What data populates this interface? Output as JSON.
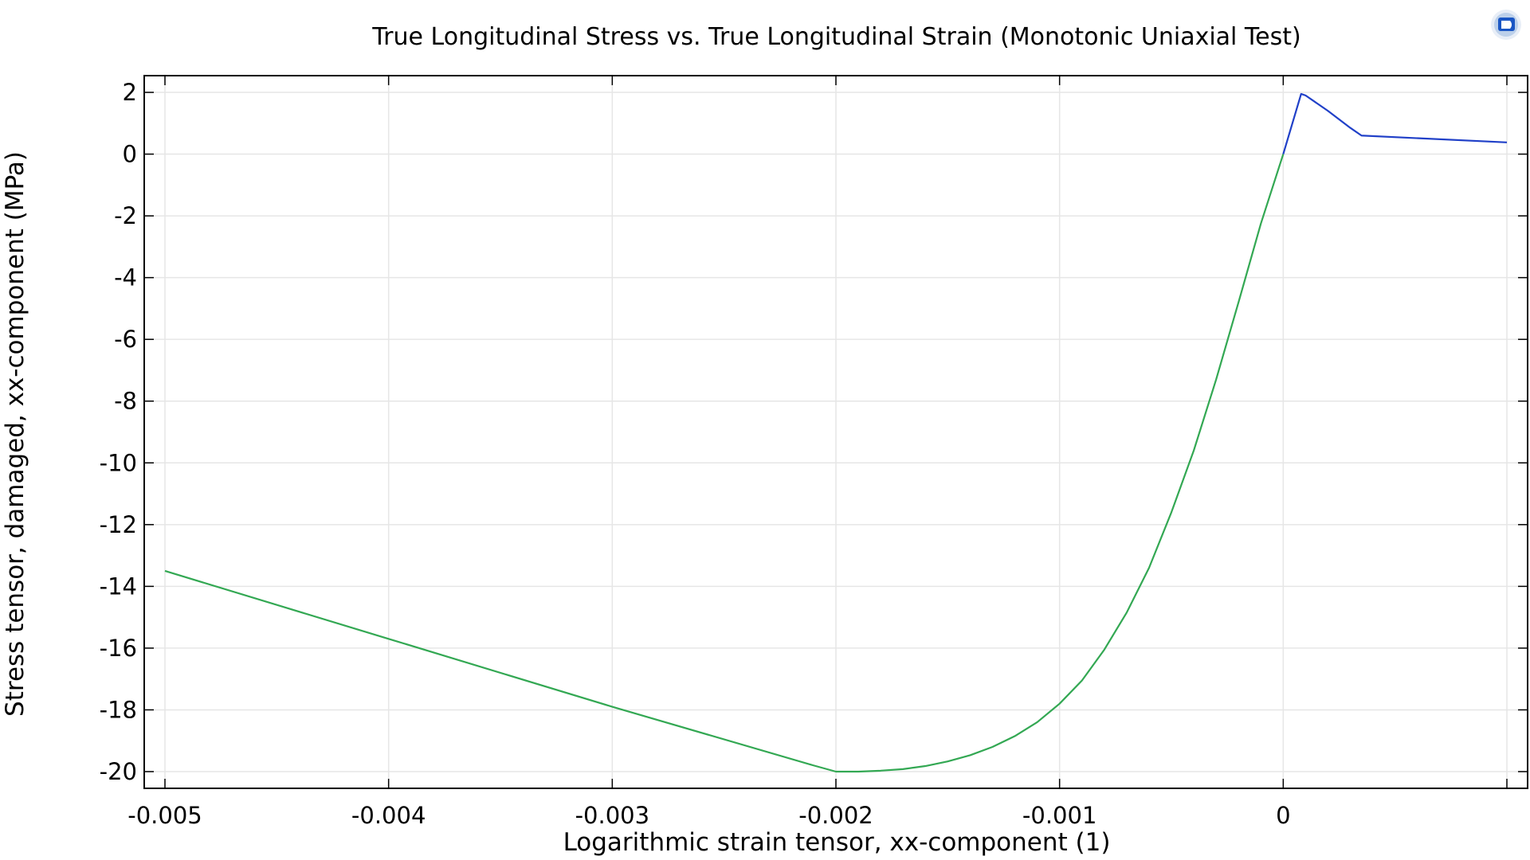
{
  "chart_data": {
    "type": "line",
    "title": "True Longitudinal Stress vs. True Longitudinal Strain (Monotonic Uniaxial Test)",
    "xlabel": "Logarithmic strain tensor, xx-component (1)",
    "ylabel": "Stress tensor, damaged, xx-component (MPa)",
    "xlim": [
      -0.005,
      0.001
    ],
    "ylim": [
      -20.5,
      2.5
    ],
    "xticks": [
      -0.005,
      -0.004,
      -0.003,
      -0.002,
      -0.001,
      0
    ],
    "xtick_labels": [
      "-0.005",
      "-0.004",
      "-0.003",
      "-0.002",
      "-0.001",
      "0"
    ],
    "yticks": [
      2,
      0,
      -2,
      -4,
      -6,
      -8,
      -10,
      -12,
      -14,
      -16,
      -18,
      -20
    ],
    "ytick_labels": [
      "2",
      "0",
      "-2",
      "-4",
      "-6",
      "-8",
      "-10",
      "-12",
      "-14",
      "-16",
      "-18",
      "-20"
    ],
    "grid": true,
    "legend": "none",
    "series": [
      {
        "color": "#33a853",
        "x": [
          0,
          -0.0001,
          -0.0002,
          -0.0003,
          -0.0004,
          -0.0005,
          -0.0006,
          -0.0007,
          -0.0008,
          -0.0009,
          -0.001,
          -0.0011,
          -0.0012,
          -0.0013,
          -0.0014,
          -0.0015,
          -0.0016,
          -0.0017,
          -0.0018,
          -0.0019,
          -0.002,
          -0.0021,
          -0.003,
          -0.004,
          -0.005
        ],
        "y": [
          0,
          -2.25,
          -4.8,
          -7.3,
          -9.6,
          -11.6,
          -13.4,
          -14.85,
          -16.05,
          -17.05,
          -17.8,
          -18.4,
          -18.85,
          -19.2,
          -19.47,
          -19.67,
          -19.82,
          -19.92,
          -19.97,
          -20.0,
          -20.0,
          -19.8,
          -17.9,
          -15.7,
          -13.5
        ]
      },
      {
        "color": "#2040c8",
        "x": [
          0,
          8e-05,
          0.0001,
          0.0002,
          0.0003,
          0.00035,
          0.001
        ],
        "y": [
          0,
          1.95,
          1.9,
          1.4,
          0.85,
          0.6,
          0.38
        ]
      }
    ]
  },
  "toolbar": {
    "icon": "comsol-logo-icon"
  }
}
